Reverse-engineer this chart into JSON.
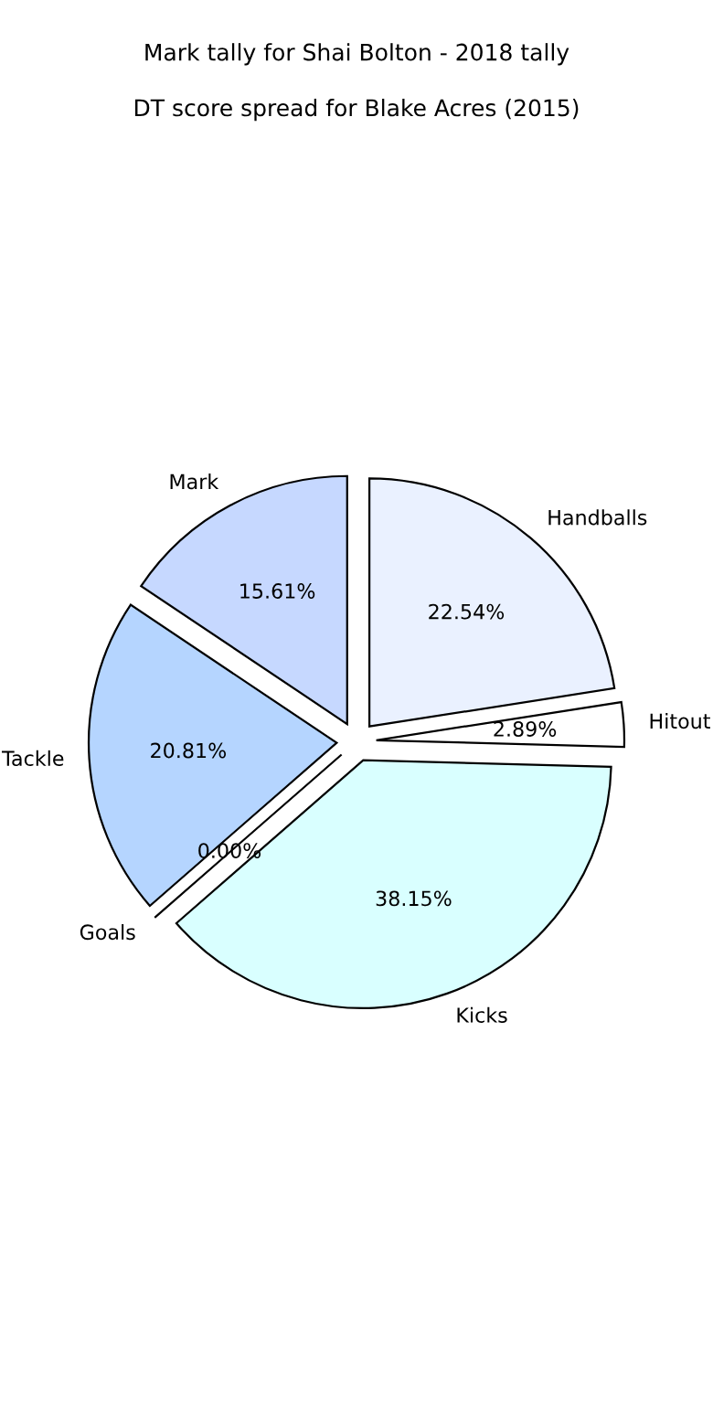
{
  "chart_data": {
    "type": "pie",
    "title": "Mark tally for Shai Bolton - 2018 tally",
    "subtitle": "DT score spread for Blake Acres (2015)",
    "categories": [
      "Mark",
      "Tackle",
      "Goals",
      "Kicks",
      "Hitout",
      "Handballs"
    ],
    "values": [
      15.61,
      20.81,
      0.0,
      38.15,
      2.89,
      22.54
    ],
    "value_labels": [
      "15.61%",
      "20.81%",
      "0.00%",
      "38.15%",
      "2.89%",
      "22.54%"
    ],
    "colors": [
      "#c6d8ff",
      "#b5d5ff",
      "#c8e6ff",
      "#d9ffff",
      "#ffffff",
      "#eaf1ff"
    ]
  }
}
